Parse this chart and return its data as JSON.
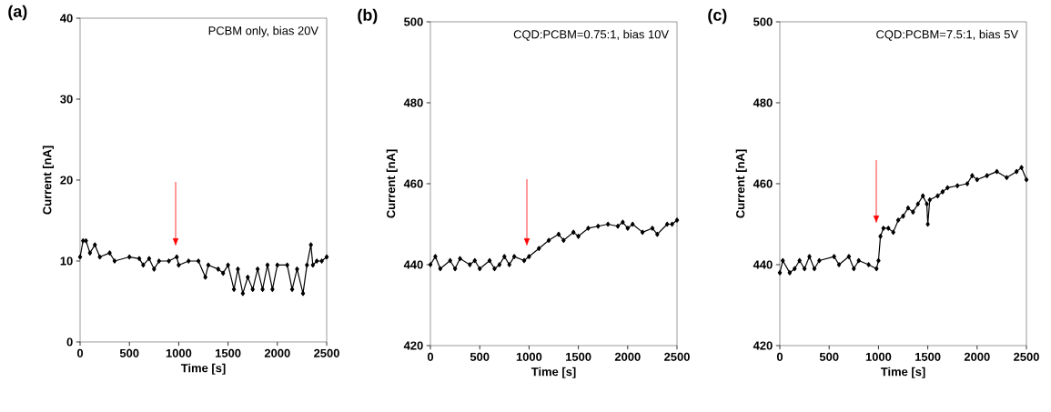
{
  "chart_data": [
    {
      "type": "line",
      "title": "(a)",
      "xlabel": "Time [s]",
      "ylabel": "Current [nA]",
      "annotations": [
        "PCBM only, bias 20V"
      ],
      "marker": "diamond",
      "xlim": [
        0,
        2500
      ],
      "ylim": [
        0,
        40
      ],
      "xticks": [
        0,
        500,
        1000,
        1500,
        2000,
        2500
      ],
      "yticks": [
        0,
        10,
        20,
        30,
        40
      ],
      "x": [
        0,
        30,
        60,
        100,
        150,
        200,
        300,
        350,
        500,
        600,
        640,
        700,
        750,
        800,
        900,
        980,
        1000,
        1100,
        1200,
        1270,
        1300,
        1400,
        1450,
        1500,
        1560,
        1600,
        1650,
        1700,
        1750,
        1800,
        1850,
        1900,
        1950,
        2000,
        2100,
        2150,
        2200,
        2260,
        2300,
        2340,
        2360,
        2400,
        2450,
        2500
      ],
      "series": [
        {
          "color": "#000000",
          "values": [
            10.5,
            12.5,
            12.5,
            11,
            12,
            10.5,
            11,
            10,
            10.5,
            10.3,
            9.5,
            10.3,
            9,
            10,
            10,
            10.5,
            9.5,
            10,
            10,
            8,
            9.5,
            9,
            8.5,
            9.5,
            6.5,
            9,
            6,
            8,
            6.5,
            9,
            6.5,
            9.5,
            6.5,
            9.5,
            9.5,
            6.5,
            9,
            6,
            9.5,
            12,
            9.5,
            10,
            10,
            10.5
          ]
        }
      ]
    },
    {
      "type": "line",
      "title": "(b)",
      "xlabel": "Time [s]",
      "ylabel": "Current [nA]",
      "annotations": [
        "CQD:PCBM=0.75:1, bias 10V"
      ],
      "marker": "diamond",
      "xlim": [
        0,
        2500
      ],
      "ylim": [
        420,
        500
      ],
      "xticks": [
        0,
        500,
        1000,
        1500,
        2000,
        2500
      ],
      "yticks": [
        420,
        440,
        460,
        480,
        500
      ],
      "x": [
        0,
        50,
        100,
        200,
        250,
        300,
        400,
        450,
        500,
        600,
        650,
        700,
        750,
        800,
        850,
        950,
        1000,
        1100,
        1200,
        1300,
        1350,
        1450,
        1500,
        1600,
        1700,
        1800,
        1900,
        1950,
        2000,
        2050,
        2150,
        2250,
        2300,
        2400,
        2450,
        2500
      ],
      "series": [
        {
          "color": "#000000",
          "values": [
            440,
            442,
            439,
            441,
            439,
            441.5,
            440,
            441,
            439,
            441,
            439,
            440,
            442,
            440,
            442,
            441,
            442,
            444,
            446,
            447.5,
            446,
            448,
            447,
            449,
            449.5,
            450,
            449.5,
            450.5,
            449,
            450,
            448,
            449,
            447.5,
            450,
            450,
            451
          ]
        }
      ]
    },
    {
      "type": "line",
      "title": "(c)",
      "xlabel": "Time [s]",
      "ylabel": "Current [nA]",
      "annotations": [
        "CQD:PCBM=7.5:1, bias 5V"
      ],
      "marker": "diamond",
      "xlim": [
        0,
        2500
      ],
      "ylim": [
        420,
        500
      ],
      "xticks": [
        0,
        500,
        1000,
        1500,
        2000,
        2500
      ],
      "yticks": [
        420,
        440,
        460,
        480,
        500
      ],
      "x": [
        0,
        30,
        100,
        150,
        200,
        250,
        300,
        350,
        400,
        550,
        600,
        700,
        750,
        800,
        900,
        980,
        1000,
        1020,
        1050,
        1100,
        1150,
        1200,
        1250,
        1300,
        1350,
        1400,
        1450,
        1490,
        1500,
        1520,
        1600,
        1650,
        1700,
        1800,
        1900,
        1950,
        2000,
        2100,
        2200,
        2300,
        2400,
        2450,
        2500
      ],
      "series": [
        {
          "color": "#000000",
          "values": [
            438,
            441,
            438,
            439,
            441,
            439,
            442,
            439,
            441,
            442,
            440,
            442,
            439,
            441,
            440,
            439,
            441,
            447,
            449,
            449,
            448,
            451,
            452,
            454,
            453,
            455,
            457,
            455,
            450,
            456,
            457,
            458,
            459,
            459.5,
            460,
            462,
            461,
            462,
            463,
            461.5,
            463,
            464,
            461
          ]
        }
      ]
    }
  ]
}
